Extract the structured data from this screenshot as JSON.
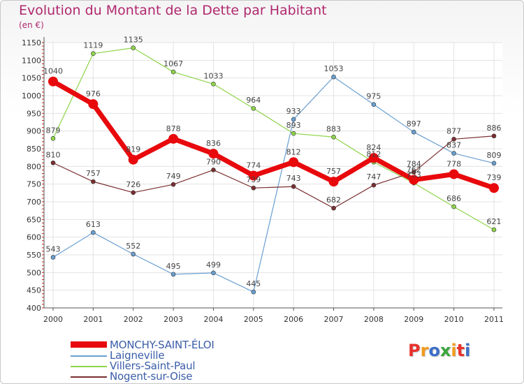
{
  "title": "Evolution du Montant de la Dette par Habitant",
  "unit_label": "(en €)",
  "logo": {
    "letters": [
      "P",
      "r",
      "o",
      "x",
      "i",
      "t",
      "i"
    ],
    "colors": [
      "#e8322c",
      "#f29a1d",
      "#3d6fc8",
      "#3aa63d",
      "#f29a1d",
      "#e8322c",
      "#3d6fc8"
    ]
  },
  "chart_data": {
    "type": "line",
    "x": [
      "2000",
      "2001",
      "2002",
      "2003",
      "2004",
      "2005",
      "2006",
      "2007",
      "2008",
      "2009",
      "2010",
      "2011"
    ],
    "ylim": [
      400,
      1150
    ],
    "yticks": [
      400,
      450,
      500,
      550,
      600,
      650,
      700,
      750,
      800,
      850,
      900,
      950,
      1000,
      1050,
      1100,
      1150
    ],
    "grid": true,
    "legend_position": "bottom-left",
    "series": [
      {
        "name": "MONCHY-SAINT-ÉLOI",
        "color": "#e8090c",
        "width": 7,
        "marker": 7,
        "values": [
          1040,
          976,
          819,
          878,
          836,
          774,
          812,
          757,
          824,
          762,
          778,
          739
        ],
        "labels": [
          "1040",
          "976",
          "819",
          "878",
          "836",
          "774",
          "812",
          "757",
          "824",
          "762",
          "778",
          "739"
        ]
      },
      {
        "name": "Laigneville",
        "color": "#6a9fd1",
        "width": 1.2,
        "marker": 3,
        "values": [
          543,
          613,
          552,
          495,
          499,
          445,
          933,
          1053,
          975,
          897,
          837,
          809
        ],
        "labels": [
          "543",
          "613",
          "552",
          "495",
          "499",
          "445",
          "933",
          "1053",
          "975",
          "897",
          "837",
          "809"
        ]
      },
      {
        "name": "Villers-Saint-Paul",
        "color": "#8fd44a",
        "width": 1.2,
        "marker": 3,
        "values": [
          879,
          1119,
          1135,
          1067,
          1033,
          964,
          893,
          883,
          812,
          753,
          686,
          621
        ],
        "labels": [
          "879",
          "1119",
          "1135",
          "1067",
          "1033",
          "964",
          "893",
          "883",
          "812",
          "753",
          "686",
          "621"
        ]
      },
      {
        "name": "Nogent-sur-Oise",
        "color": "#7a2e30",
        "width": 1.2,
        "marker": 3,
        "values": [
          810,
          757,
          726,
          749,
          790,
          739,
          743,
          682,
          747,
          784,
          877,
          886
        ],
        "labels": [
          "810",
          "757",
          "726",
          "749",
          "790",
          "739",
          "743",
          "682",
          "747",
          "784",
          "877",
          "886"
        ]
      }
    ]
  }
}
